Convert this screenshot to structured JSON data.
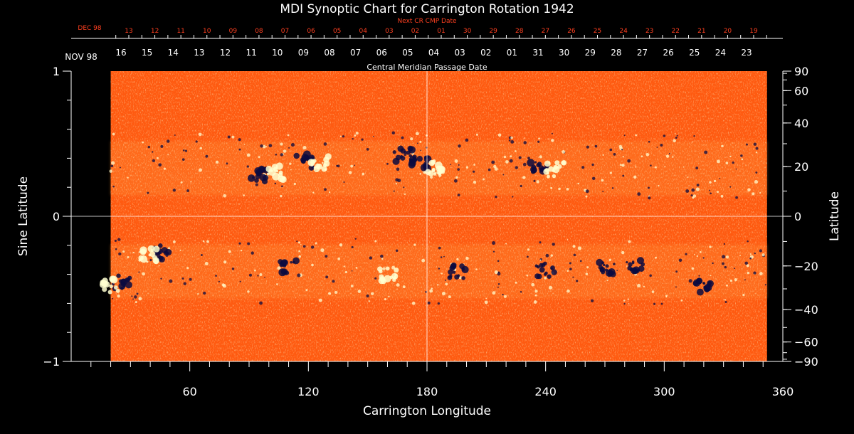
{
  "chart_data": {
    "type": "heatmap",
    "title": "MDI Synoptic Chart for Carrington Rotation 1942",
    "xlabel": "Carrington Longitude",
    "ylabel_left": "Sine Latitude",
    "ylabel_right": "Latitude",
    "xlim": [
      0,
      360
    ],
    "ylim": [
      -1,
      1
    ],
    "x_ticks": [
      60,
      120,
      180,
      240,
      300,
      360
    ],
    "y_ticks_left": [
      {
        "value": 1,
        "label": "1"
      },
      {
        "value": 0,
        "label": "0"
      },
      {
        "value": -1,
        "label": "−1"
      }
    ],
    "y_ticks_right": [
      {
        "deg": 90,
        "label": "90"
      },
      {
        "deg": 60,
        "label": "60"
      },
      {
        "deg": 40,
        "label": "40"
      },
      {
        "deg": 20,
        "label": "20"
      },
      {
        "deg": 0,
        "label": "0"
      },
      {
        "deg": -20,
        "label": "−20"
      },
      {
        "deg": -40,
        "label": "−40"
      },
      {
        "deg": -60,
        "label": "−60"
      },
      {
        "deg": -90,
        "label": "−90"
      }
    ],
    "data_extent_longitude": [
      20,
      352
    ],
    "central_meridian_label": "Central Meridian Passage Date",
    "cmp_month_label": "NOV 98",
    "cmp_dates": [
      "16",
      "15",
      "14",
      "13",
      "12",
      "11",
      "10",
      "09",
      "08",
      "07",
      "06",
      "05",
      "04",
      "03",
      "02",
      "01",
      "31",
      "30",
      "29",
      "28",
      "27",
      "26",
      "25",
      "24",
      "23"
    ],
    "next_cr_label": "Next CR CMP Date",
    "next_cr_month_label": "DEC 98",
    "next_cr_dates": [
      "13",
      "12",
      "11",
      "10",
      "09",
      "08",
      "07",
      "06",
      "05",
      "04",
      "03",
      "02",
      "01",
      "30",
      "29",
      "28",
      "27",
      "26",
      "25",
      "24",
      "23",
      "22",
      "21",
      "20",
      "19"
    ],
    "colors": {
      "background": "#000000",
      "field_base": "#ff5a10",
      "positive_polarity": "#ffffd0",
      "negative_polarity": "#0a0a40",
      "next_cr_text": "#ff4020",
      "axes": "#ffffff"
    },
    "active_regions": [
      {
        "lon": 95,
        "sinlat": 0.28,
        "polarity": "negative"
      },
      {
        "lon": 103,
        "sinlat": 0.3,
        "polarity": "positive"
      },
      {
        "lon": 118,
        "sinlat": 0.38,
        "polarity": "negative"
      },
      {
        "lon": 126,
        "sinlat": 0.37,
        "polarity": "positive"
      },
      {
        "lon": 168,
        "sinlat": 0.42,
        "polarity": "negative"
      },
      {
        "lon": 176,
        "sinlat": 0.36,
        "polarity": "negative"
      },
      {
        "lon": 183,
        "sinlat": 0.33,
        "polarity": "positive"
      },
      {
        "lon": 237,
        "sinlat": 0.33,
        "polarity": "negative"
      },
      {
        "lon": 245,
        "sinlat": 0.32,
        "polarity": "positive"
      },
      {
        "lon": 25,
        "sinlat": -0.45,
        "polarity": "negative"
      },
      {
        "lon": 20,
        "sinlat": -0.48,
        "polarity": "positive"
      },
      {
        "lon": 45,
        "sinlat": -0.25,
        "polarity": "negative"
      },
      {
        "lon": 39,
        "sinlat": -0.27,
        "polarity": "positive"
      },
      {
        "lon": 110,
        "sinlat": -0.35,
        "polarity": "negative"
      },
      {
        "lon": 160,
        "sinlat": -0.4,
        "polarity": "positive"
      },
      {
        "lon": 195,
        "sinlat": -0.38,
        "polarity": "negative"
      },
      {
        "lon": 240,
        "sinlat": -0.37,
        "polarity": "negative"
      },
      {
        "lon": 270,
        "sinlat": -0.36,
        "polarity": "negative"
      },
      {
        "lon": 285,
        "sinlat": -0.33,
        "polarity": "negative"
      },
      {
        "lon": 320,
        "sinlat": -0.48,
        "polarity": "negative"
      }
    ]
  }
}
